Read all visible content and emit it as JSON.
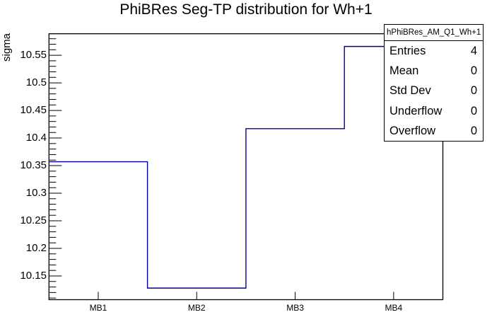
{
  "chart_data": {
    "type": "bar",
    "subtype": "step-histogram",
    "title": "PhiBRes Seg-TP distribution for Wh+1",
    "xlabel": "",
    "ylabel": "sigma",
    "categories": [
      "MB1",
      "MB2",
      "MB3",
      "MB4"
    ],
    "values": [
      10.357,
      10.128,
      10.417,
      10.566
    ],
    "ylim": [
      10.107,
      10.589
    ],
    "y_ticks": [
      10.15,
      10.2,
      10.25,
      10.3,
      10.35,
      10.4,
      10.45,
      10.5,
      10.55
    ],
    "y_minor_step": 0.01,
    "grid": false,
    "legend_position": "none",
    "line_color": "#000099",
    "frame_color": "#000000",
    "background_color": "#ffffff"
  },
  "stats_box": {
    "header": "hPhiBRes_AM_Q1_Wh+1",
    "rows": [
      {
        "label": "Entries",
        "value": "4"
      },
      {
        "label": "Mean",
        "value": "0"
      },
      {
        "label": "Std Dev",
        "value": "0"
      },
      {
        "label": "Underflow",
        "value": "0"
      },
      {
        "label": "Overflow",
        "value": "0"
      }
    ]
  }
}
